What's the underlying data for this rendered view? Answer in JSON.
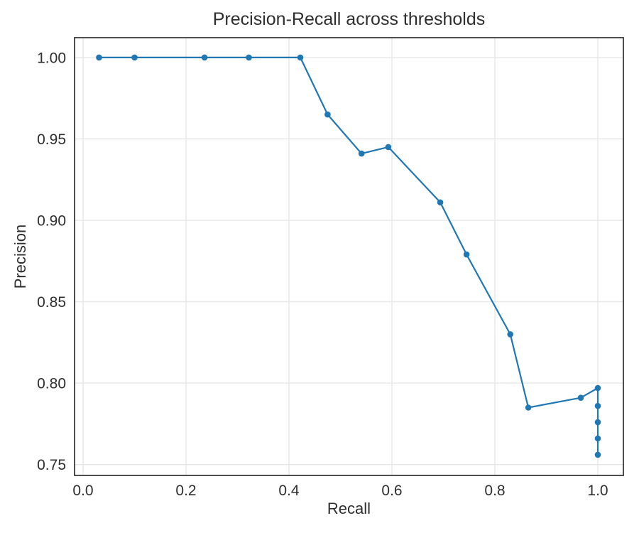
{
  "chart_data": {
    "type": "line",
    "title": "Precision-Recall across thresholds",
    "xlabel": "Recall",
    "ylabel": "Precision",
    "xlim": [
      -0.0166,
      1.0497
    ],
    "ylim": [
      0.7433,
      1.0122
    ],
    "grid": true,
    "legend": "none",
    "xticks": {
      "values": [
        0.0,
        0.2,
        0.4,
        0.6,
        0.8,
        1.0
      ],
      "labels": [
        "0.0",
        "0.2",
        "0.4",
        "0.6",
        "0.8",
        "1.0"
      ]
    },
    "yticks": {
      "values": [
        0.75,
        0.8,
        0.85,
        0.9,
        0.95,
        1.0
      ],
      "labels": [
        "0.75",
        "0.80",
        "0.85",
        "0.90",
        "0.95",
        "1.00"
      ]
    },
    "series": [
      {
        "name": "precision-recall-curve",
        "color": "#1f77b4",
        "marker": "circle",
        "points": [
          [
            0.031,
            1.0
          ],
          [
            0.1,
            1.0
          ],
          [
            0.236,
            1.0
          ],
          [
            0.322,
            1.0
          ],
          [
            0.422,
            1.0
          ],
          [
            0.475,
            0.965
          ],
          [
            0.541,
            0.941
          ],
          [
            0.593,
            0.945
          ],
          [
            0.694,
            0.911
          ],
          [
            0.745,
            0.879
          ],
          [
            0.83,
            0.83
          ],
          [
            0.865,
            0.785
          ],
          [
            0.967,
            0.791
          ],
          [
            1.0,
            0.797
          ],
          [
            1.0,
            0.786
          ],
          [
            1.0,
            0.776
          ],
          [
            1.0,
            0.766
          ],
          [
            1.0,
            0.756
          ]
        ]
      }
    ]
  },
  "colors": {
    "background": "#ffffff",
    "line": "#1f77b4",
    "grid": "#e7e7e7",
    "spine": "#3a3a3a",
    "text": "#2e2e2e"
  }
}
